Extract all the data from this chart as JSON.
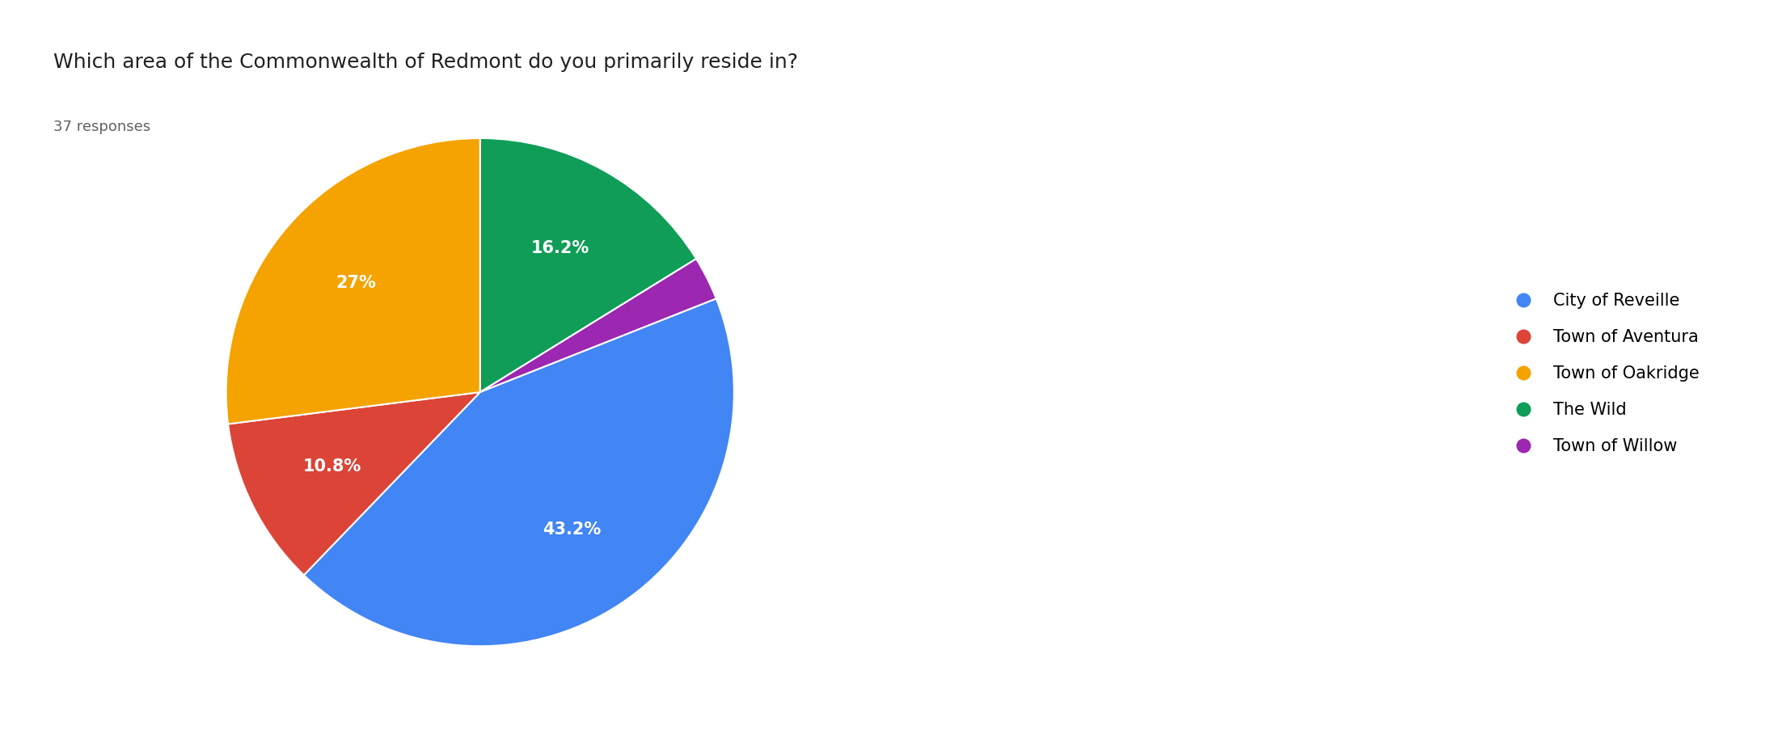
{
  "title": "Which area of the Commonwealth of Redmont do you primarily reside in?",
  "subtitle": "37 responses",
  "labels": [
    "City of Reveille",
    "Town of Aventura",
    "Town of Oakridge",
    "The Wild",
    "Town of Willow"
  ],
  "values": [
    43.2,
    10.8,
    27.0,
    16.2,
    2.8
  ],
  "colors": [
    "#4285F4",
    "#DB4437",
    "#F4A300",
    "#0F9D58",
    "#9C27B0"
  ],
  "autopct_labels": [
    "43.2%",
    "10.8%",
    "27%",
    "16.2%",
    ""
  ],
  "pie_order_idx": [
    3,
    4,
    0,
    1,
    2
  ],
  "title_fontsize": 18,
  "subtitle_fontsize": 13,
  "legend_fontsize": 15,
  "autopct_fontsize": 15,
  "background_color": "#ffffff"
}
